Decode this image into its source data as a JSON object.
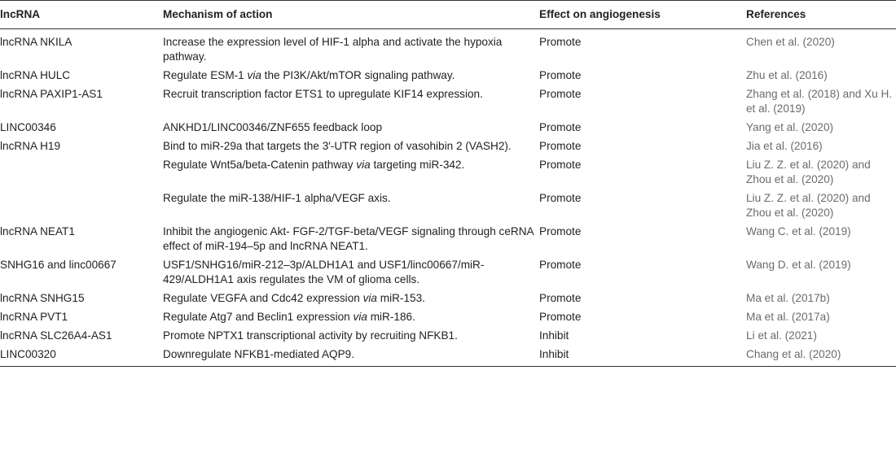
{
  "headers": {
    "lncrna": "lncRNA",
    "mechanism": "Mechanism of action",
    "effect": "Effect on angiogenesis",
    "references": "References"
  },
  "rows": [
    {
      "lncrna": "lncRNA NKILA",
      "mech_a": "Increase the expression level of HIF-1 alpha and activate the hypoxia pathway.",
      "mech_em": "",
      "mech_b": "",
      "effect": "Promote",
      "ref": "Chen et al. (2020)"
    },
    {
      "lncrna": "lncRNA HULC",
      "mech_a": "Regulate ESM-1 ",
      "mech_em": "via",
      "mech_b": " the PI3K/Akt/mTOR signaling pathway.",
      "effect": "Promote",
      "ref": "Zhu et al. (2016)"
    },
    {
      "lncrna": "lncRNA PAXIP1-AS1",
      "mech_a": "Recruit transcription factor ETS1 to upregulate KIF14 expression.",
      "mech_em": "",
      "mech_b": "",
      "effect": "Promote",
      "ref": "Zhang et al. (2018) and Xu H. et al. (2019)"
    },
    {
      "lncrna": "LINC00346",
      "mech_a": "ANKHD1/LINC00346/ZNF655 feedback loop",
      "mech_em": "",
      "mech_b": "",
      "effect": "Promote",
      "ref": "Yang et al. (2020)"
    },
    {
      "lncrna": "lncRNA H19",
      "mech_a": "Bind to miR-29a that targets the 3′-UTR region of vasohibin 2 (VASH2).",
      "mech_em": "",
      "mech_b": "",
      "effect": "Promote",
      "ref": "Jia et al. (2016)"
    },
    {
      "lncrna": "",
      "mech_a": "Regulate Wnt5a/beta-Catenin pathway ",
      "mech_em": "via",
      "mech_b": " targeting miR-342.",
      "effect": "Promote",
      "ref": "Liu Z. Z. et al. (2020) and Zhou et al. (2020)"
    },
    {
      "lncrna": "",
      "mech_a": "Regulate the miR-138/HIF-1 alpha/VEGF axis.",
      "mech_em": "",
      "mech_b": "",
      "effect": "Promote",
      "ref": "Liu Z. Z. et al. (2020) and Zhou et al. (2020)"
    },
    {
      "lncrna": "lncRNA NEAT1",
      "mech_a": "Inhibit the angiogenic Akt- FGF-2/TGF-beta/VEGF signaling through ceRNA effect of miR-194–5p and lncRNA NEAT1.",
      "mech_em": "",
      "mech_b": "",
      "effect": "Promote",
      "ref": "Wang C. et al. (2019)"
    },
    {
      "lncrna": "SNHG16 and linc00667",
      "mech_a": "USF1/SNHG16/miR-212–3p/ALDH1A1 and USF1/linc00667/miR-429/ALDH1A1 axis regulates the VM of glioma cells.",
      "mech_em": "",
      "mech_b": "",
      "effect": "Promote",
      "ref": "Wang D. et al. (2019)"
    },
    {
      "lncrna": "lncRNA SNHG15",
      "mech_a": "Regulate VEGFA and Cdc42 expression ",
      "mech_em": "via",
      "mech_b": " miR-153.",
      "effect": "Promote",
      "ref": "Ma et al. (2017b)"
    },
    {
      "lncrna": "lncRNA PVT1",
      "mech_a": "Regulate Atg7 and Beclin1 expression ",
      "mech_em": "via",
      "mech_b": " miR-186.",
      "effect": "Promote",
      "ref": "Ma et al. (2017a)"
    },
    {
      "lncrna": "lncRNA SLC26A4-AS1",
      "mech_a": "Promote NPTX1 transcriptional activity by recruiting NFKB1.",
      "mech_em": "",
      "mech_b": "",
      "effect": "Inhibit",
      "ref": "Li et al. (2021)"
    },
    {
      "lncrna": "LINC00320",
      "mech_a": "Downregulate NFKB1-mediated AQP9.",
      "mech_em": "",
      "mech_b": "",
      "effect": "Inhibit",
      "ref": "Chang et al. (2020)"
    }
  ]
}
